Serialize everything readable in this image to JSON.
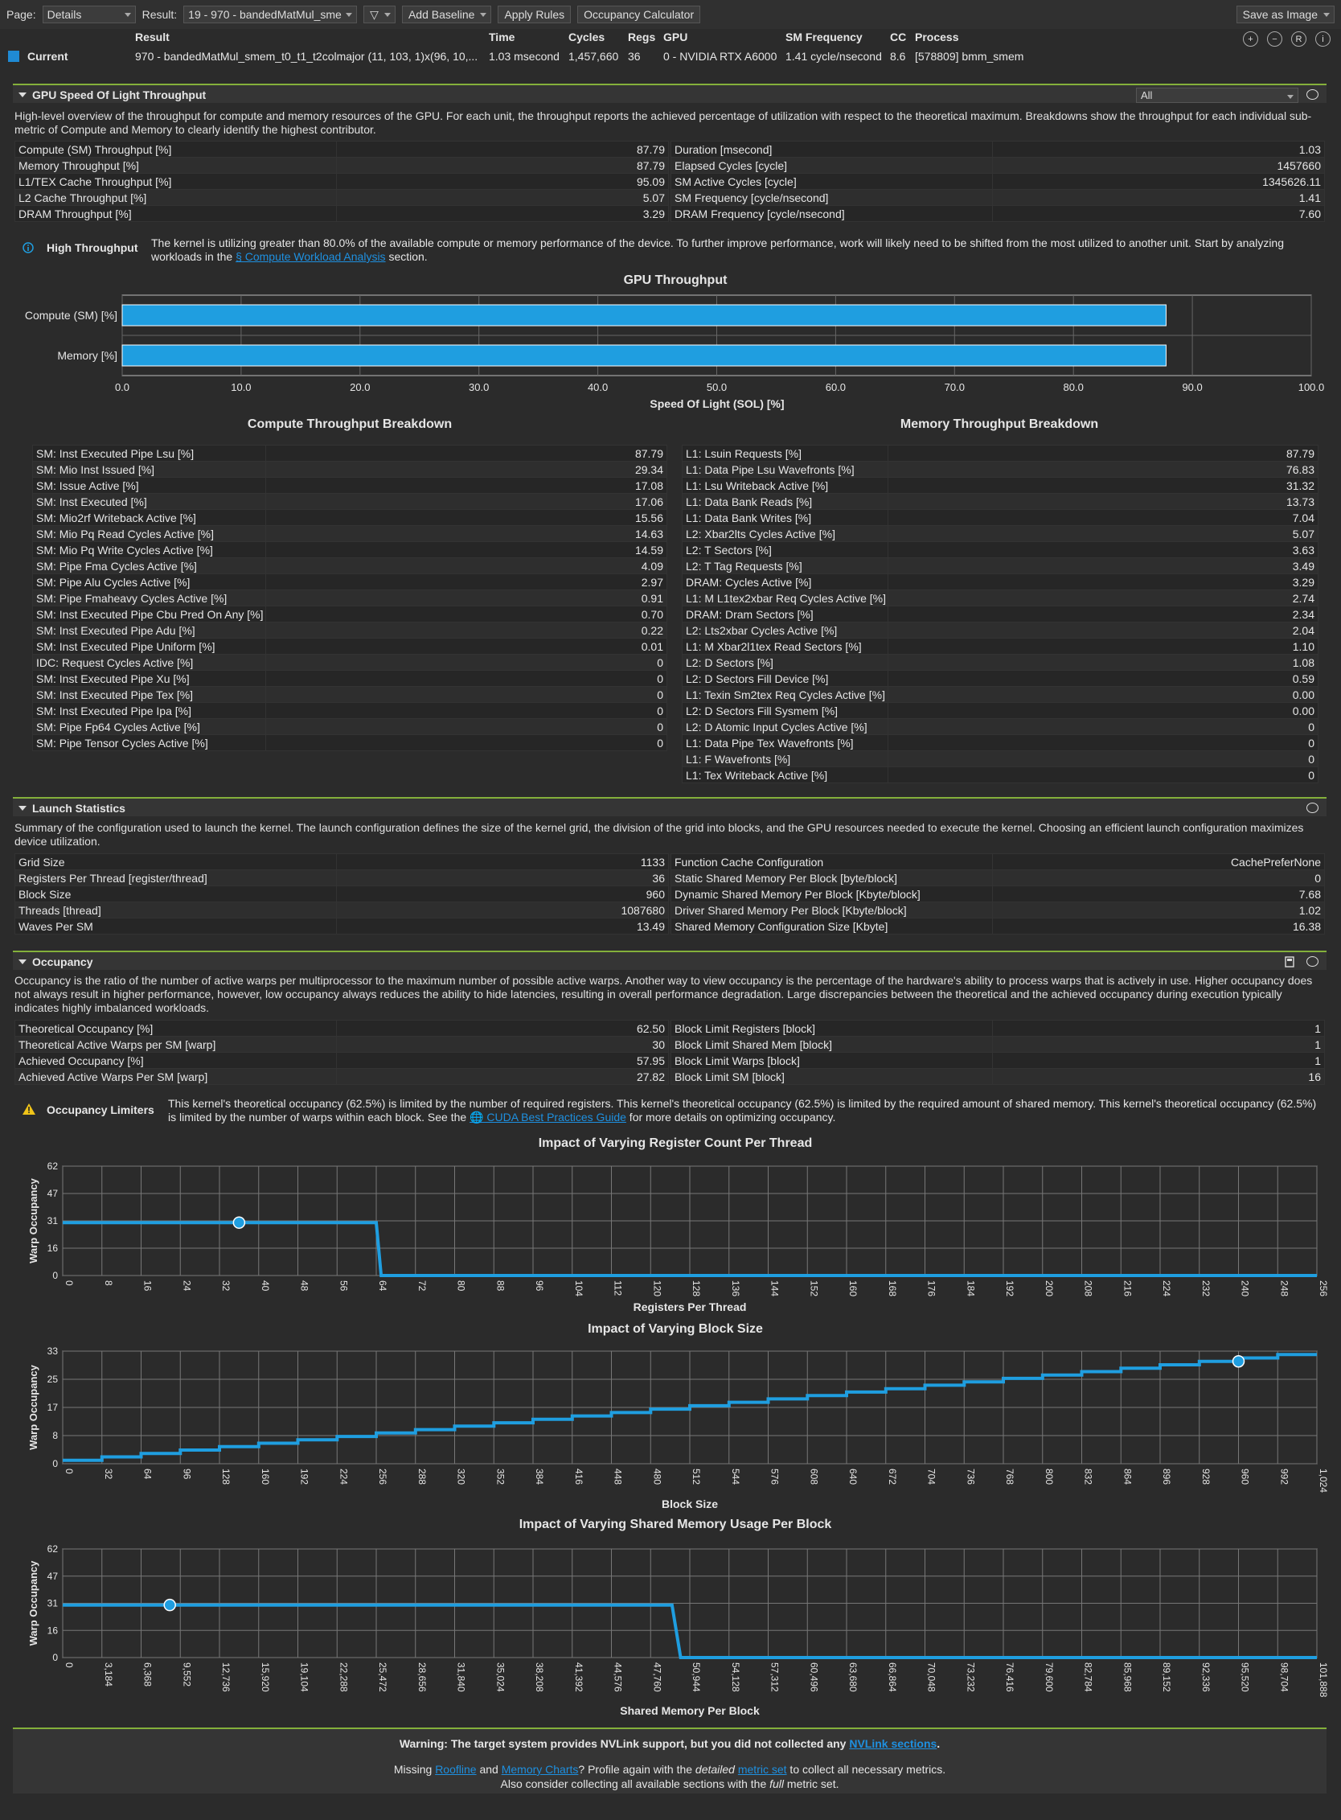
{
  "toolbar": {
    "page_label": "Page:",
    "page_value": "Details",
    "result_label": "Result:",
    "result_value": "19 - 970 - bandedMatMul_sme",
    "filter_label": "▽",
    "add_baseline": "Add Baseline",
    "apply_rules": "Apply Rules",
    "occupancy_calculator": "Occupancy Calculator",
    "save_as_image": "Save as Image"
  },
  "result_bar": {
    "headers": [
      "Result",
      "Time",
      "Cycles",
      "Regs",
      "GPU",
      "SM Frequency",
      "CC",
      "Process"
    ],
    "current_label": "Current",
    "values": [
      "970 - bandedMatMul_smem_t0_t1_t2colmajor (11, 103, 1)x(96, 10,...",
      "1.03 msecond",
      "1,457,660",
      "36",
      "0 - NVIDIA RTX A6000",
      "1.41 cycle/nsecond",
      "8.6",
      "[578809] bmm_smem"
    ]
  },
  "sol": {
    "title": "GPU Speed Of Light Throughput",
    "filter_value": "All",
    "description": "High-level overview of the throughput for compute and memory resources of the GPU. For each unit, the throughput reports the achieved percentage of utilization with respect to the theoretical maximum. Breakdowns show the throughput for each individual sub-metric of Compute and Memory to clearly identify the highest contributor.",
    "left": [
      [
        "Compute (SM) Throughput [%]",
        "87.79"
      ],
      [
        "Memory Throughput [%]",
        "87.79"
      ],
      [
        "L1/TEX Cache Throughput [%]",
        "95.09"
      ],
      [
        "L2 Cache Throughput [%]",
        "5.07"
      ],
      [
        "DRAM Throughput [%]",
        "3.29"
      ]
    ],
    "right": [
      [
        "Duration [msecond]",
        "1.03"
      ],
      [
        "Elapsed Cycles [cycle]",
        "1457660"
      ],
      [
        "SM Active Cycles [cycle]",
        "1345626.11"
      ],
      [
        "SM Frequency [cycle/nsecond]",
        "1.41"
      ],
      [
        "DRAM Frequency [cycle/nsecond]",
        "7.60"
      ]
    ],
    "rule_title": "High Throughput",
    "rule_text_1": "The kernel is utilizing greater than 80.0% of the available compute or memory performance of the device. To further improve performance, work will likely need to be shifted from the most utilized to another unit. Start by analyzing workloads in the ",
    "rule_link": "§ Compute Workload Analysis",
    "rule_text_2": " section."
  },
  "chart_data": [
    {
      "type": "bar",
      "title": "GPU Throughput",
      "categories": [
        "Compute (SM) [%]",
        "Memory [%]"
      ],
      "values": [
        87.79,
        87.79
      ],
      "xlabel": "Speed Of Light (SOL) [%]",
      "xlim": [
        0,
        100
      ],
      "ticks": [
        "0.0",
        "10.0",
        "20.0",
        "30.0",
        "40.0",
        "50.0",
        "60.0",
        "70.0",
        "80.0",
        "90.0",
        "100.0"
      ],
      "color": "#1f9ee0"
    },
    {
      "type": "line",
      "title": "Impact of Varying Register Count Per Thread",
      "xlabel": "Registers Per Thread",
      "ylabel": "Warp Occupancy",
      "xlim": [
        0,
        256
      ],
      "ylim": [
        0,
        62
      ],
      "yticks": [
        "0",
        "16",
        "31",
        "47",
        "62"
      ],
      "xticks": [
        "0",
        "8",
        "16",
        "24",
        "32",
        "40",
        "48",
        "56",
        "64",
        "72",
        "80",
        "88",
        "96",
        "104",
        "112",
        "120",
        "128",
        "136",
        "144",
        "152",
        "160",
        "168",
        "176",
        "184",
        "192",
        "200",
        "208",
        "216",
        "224",
        "232",
        "240",
        "248",
        "256"
      ],
      "points": [
        [
          0,
          30
        ],
        [
          64,
          30
        ],
        [
          65,
          0
        ],
        [
          256,
          0
        ]
      ],
      "marker": [
        36,
        30
      ],
      "color": "#1f9ee0"
    },
    {
      "type": "line",
      "title": "Impact of Varying Block Size",
      "xlabel": "Block Size",
      "ylabel": "Warp Occupancy",
      "xlim": [
        0,
        1024
      ],
      "ylim": [
        0,
        33
      ],
      "yticks": [
        "0",
        "8",
        "17",
        "25",
        "33"
      ],
      "xticks": [
        "0",
        "32",
        "64",
        "96",
        "128",
        "160",
        "192",
        "224",
        "256",
        "288",
        "320",
        "352",
        "384",
        "416",
        "448",
        "480",
        "512",
        "544",
        "576",
        "608",
        "640",
        "672",
        "704",
        "736",
        "768",
        "800",
        "832",
        "864",
        "896",
        "928",
        "960",
        "992",
        "1,024"
      ],
      "staircase": {
        "step": 32,
        "max": 1024,
        "warps_per_step": 1
      },
      "marker": [
        960,
        30
      ],
      "color": "#1f9ee0"
    },
    {
      "type": "line",
      "title": "Impact of Varying Shared Memory Usage Per Block",
      "xlabel": "Shared Memory Per Block",
      "ylabel": "Warp Occupancy",
      "xlim": [
        0,
        101888
      ],
      "ylim": [
        0,
        62
      ],
      "yticks": [
        "0",
        "16",
        "31",
        "47",
        "62"
      ],
      "xticks": [
        "0",
        "3,184",
        "6,368",
        "9,552",
        "12,736",
        "15,920",
        "19,104",
        "22,288",
        "25,472",
        "28,656",
        "31,840",
        "35,024",
        "38,208",
        "41,392",
        "44,576",
        "47,760",
        "50,944",
        "54,128",
        "57,312",
        "60,496",
        "63,680",
        "66,864",
        "70,048",
        "73,232",
        "76,416",
        "79,600",
        "82,784",
        "85,968",
        "89,152",
        "92,336",
        "95,520",
        "98,704",
        "101,888"
      ],
      "points": [
        [
          0,
          30
        ],
        [
          49500,
          30
        ],
        [
          50200,
          0
        ],
        [
          101888,
          0
        ]
      ],
      "marker": [
        8700,
        30
      ],
      "color": "#1f9ee0"
    }
  ],
  "compute_breakdown": {
    "title": "Compute Throughput Breakdown",
    "rows": [
      [
        "SM: Inst Executed Pipe Lsu [%]",
        "87.79"
      ],
      [
        "SM: Mio Inst Issued [%]",
        "29.34"
      ],
      [
        "SM: Issue Active [%]",
        "17.08"
      ],
      [
        "SM: Inst Executed [%]",
        "17.06"
      ],
      [
        "SM: Mio2rf Writeback Active [%]",
        "15.56"
      ],
      [
        "SM: Mio Pq Read Cycles Active [%]",
        "14.63"
      ],
      [
        "SM: Mio Pq Write Cycles Active [%]",
        "14.59"
      ],
      [
        "SM: Pipe Fma Cycles Active [%]",
        "4.09"
      ],
      [
        "SM: Pipe Alu Cycles Active [%]",
        "2.97"
      ],
      [
        "SM: Pipe Fmaheavy Cycles Active [%]",
        "0.91"
      ],
      [
        "SM: Inst Executed Pipe Cbu Pred On Any [%]",
        "0.70"
      ],
      [
        "SM: Inst Executed Pipe Adu [%]",
        "0.22"
      ],
      [
        "SM: Inst Executed Pipe Uniform [%]",
        "0.01"
      ],
      [
        "IDC: Request Cycles Active [%]",
        "0"
      ],
      [
        "SM: Inst Executed Pipe Xu [%]",
        "0"
      ],
      [
        "SM: Inst Executed Pipe Tex [%]",
        "0"
      ],
      [
        "SM: Inst Executed Pipe Ipa [%]",
        "0"
      ],
      [
        "SM: Pipe Fp64 Cycles Active [%]",
        "0"
      ],
      [
        "SM: Pipe Tensor Cycles Active [%]",
        "0"
      ]
    ]
  },
  "memory_breakdown": {
    "title": "Memory Throughput Breakdown",
    "rows": [
      [
        "L1: Lsuin Requests [%]",
        "87.79"
      ],
      [
        "L1: Data Pipe Lsu Wavefronts [%]",
        "76.83"
      ],
      [
        "L1: Lsu Writeback Active [%]",
        "31.32"
      ],
      [
        "L1: Data Bank Reads [%]",
        "13.73"
      ],
      [
        "L1: Data Bank Writes [%]",
        "7.04"
      ],
      [
        "L2: Xbar2lts Cycles Active [%]",
        "5.07"
      ],
      [
        "L2: T Sectors [%]",
        "3.63"
      ],
      [
        "L2: T Tag Requests [%]",
        "3.49"
      ],
      [
        "DRAM: Cycles Active [%]",
        "3.29"
      ],
      [
        "L1: M L1tex2xbar Req Cycles Active [%]",
        "2.74"
      ],
      [
        "DRAM: Dram Sectors [%]",
        "2.34"
      ],
      [
        "L2: Lts2xbar Cycles Active [%]",
        "2.04"
      ],
      [
        "L1: M Xbar2l1tex Read Sectors [%]",
        "1.10"
      ],
      [
        "L2: D Sectors [%]",
        "1.08"
      ],
      [
        "L2: D Sectors Fill Device [%]",
        "0.59"
      ],
      [
        "L1: Texin Sm2tex Req Cycles Active [%]",
        "0.00"
      ],
      [
        "L2: D Sectors Fill Sysmem [%]",
        "0.00"
      ],
      [
        "L2: D Atomic Input Cycles Active [%]",
        "0"
      ],
      [
        "L1: Data Pipe Tex Wavefronts [%]",
        "0"
      ],
      [
        "L1: F Wavefronts [%]",
        "0"
      ],
      [
        "L1: Tex Writeback Active [%]",
        "0"
      ]
    ]
  },
  "launch": {
    "title": "Launch Statistics",
    "description": "Summary of the configuration used to launch the kernel. The launch configuration defines the size of the kernel grid, the division of the grid into blocks, and the GPU resources needed to execute the kernel. Choosing an efficient launch configuration maximizes device utilization.",
    "left": [
      [
        "Grid Size",
        "1133"
      ],
      [
        "Registers Per Thread [register/thread]",
        "36"
      ],
      [
        "Block Size",
        "960"
      ],
      [
        "Threads [thread]",
        "1087680"
      ],
      [
        "Waves Per SM",
        "13.49"
      ]
    ],
    "right": [
      [
        "Function Cache Configuration",
        "CachePreferNone"
      ],
      [
        "Static Shared Memory Per Block [byte/block]",
        "0"
      ],
      [
        "Dynamic Shared Memory Per Block [Kbyte/block]",
        "7.68"
      ],
      [
        "Driver Shared Memory Per Block [Kbyte/block]",
        "1.02"
      ],
      [
        "Shared Memory Configuration Size [Kbyte]",
        "16.38"
      ]
    ]
  },
  "occupancy": {
    "title": "Occupancy",
    "description": "Occupancy is the ratio of the number of active warps per multiprocessor to the maximum number of possible active warps. Another way to view occupancy is the percentage of the hardware's ability to process warps that is actively in use. Higher occupancy does not always result in higher performance, however, low occupancy always reduces the ability to hide latencies, resulting in overall performance degradation. Large discrepancies between the theoretical and the achieved occupancy during execution typically indicates highly imbalanced workloads.",
    "left": [
      [
        "Theoretical Occupancy [%]",
        "62.50"
      ],
      [
        "Theoretical Active Warps per SM [warp]",
        "30"
      ],
      [
        "Achieved Occupancy [%]",
        "57.95"
      ],
      [
        "Achieved Active Warps Per SM [warp]",
        "27.82"
      ]
    ],
    "right": [
      [
        "Block Limit Registers [block]",
        "1"
      ],
      [
        "Block Limit Shared Mem [block]",
        "1"
      ],
      [
        "Block Limit Warps [block]",
        "1"
      ],
      [
        "Block Limit SM [block]",
        "16"
      ]
    ],
    "rule_title": "Occupancy Limiters",
    "rule_text_1": "This kernel's theoretical occupancy (62.5%) is limited by the number of required registers. This kernel's theoretical occupancy (62.5%) is limited by the required amount of shared memory. This kernel's theoretical occupancy (62.5%) is limited by the number of warps within each block. See the ",
    "rule_link": "🌐 CUDA Best Practices Guide",
    "rule_text_2": " for more details on optimizing occupancy."
  },
  "footer": {
    "warn_1": "Warning: The target system provides NVLink support, but you did not collected any ",
    "warn_link": "NVLink sections",
    "warn_2": ".",
    "l1a": "Missing ",
    "l1_roof": "Roofline",
    "l1b": " and ",
    "l1_mem": "Memory Charts",
    "l1c": "? Profile again with the ",
    "l1_detailed": "detailed",
    "l1_space": " ",
    "l1_metric": "metric set",
    "l1d": " to collect all necessary metrics.",
    "l2a": "Also consider collecting all available sections with the ",
    "l2_full": "full",
    "l2b": " metric set."
  }
}
